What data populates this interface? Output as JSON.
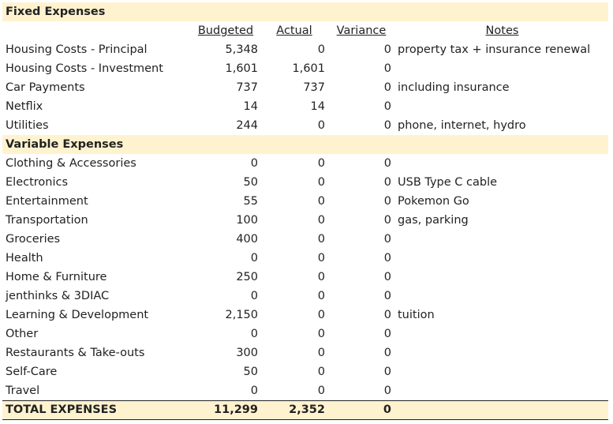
{
  "fixed": {
    "title": "Fixed Expenses",
    "headers": {
      "budgeted": "Budgeted",
      "actual": "Actual",
      "variance": "Variance",
      "notes": "Notes"
    },
    "rows": [
      {
        "label": "Housing Costs - Principal",
        "budgeted": "5,348",
        "actual": "0",
        "variance": "0",
        "note": "property tax + insurance renewal"
      },
      {
        "label": "Housing Costs - Investment",
        "budgeted": "1,601",
        "actual": "1,601",
        "variance": "0",
        "note": ""
      },
      {
        "label": "Car Payments",
        "budgeted": "737",
        "actual": "737",
        "variance": "0",
        "note": "including insurance"
      },
      {
        "label": "Netflix",
        "budgeted": "14",
        "actual": "14",
        "variance": "0",
        "note": ""
      },
      {
        "label": "Utilities",
        "budgeted": "244",
        "actual": "0",
        "variance": "0",
        "note": "phone, internet, hydro"
      }
    ]
  },
  "variable": {
    "title": "Variable Expenses",
    "rows": [
      {
        "label": "Clothing & Accessories",
        "budgeted": "0",
        "actual": "0",
        "variance": "0",
        "note": ""
      },
      {
        "label": "Electronics",
        "budgeted": "50",
        "actual": "0",
        "variance": "0",
        "note": "USB Type C cable"
      },
      {
        "label": "Entertainment",
        "budgeted": "55",
        "actual": "0",
        "variance": "0",
        "note": "Pokemon Go"
      },
      {
        "label": "Transportation",
        "budgeted": "100",
        "actual": "0",
        "variance": "0",
        "note": "gas, parking"
      },
      {
        "label": "Groceries",
        "budgeted": "400",
        "actual": "0",
        "variance": "0",
        "note": ""
      },
      {
        "label": "Health",
        "budgeted": "0",
        "actual": "0",
        "variance": "0",
        "note": ""
      },
      {
        "label": "Home & Furniture",
        "budgeted": "250",
        "actual": "0",
        "variance": "0",
        "note": ""
      },
      {
        "label": "jenthinks & 3DIAC",
        "budgeted": "0",
        "actual": "0",
        "variance": "0",
        "note": ""
      },
      {
        "label": "Learning & Development",
        "budgeted": "2,150",
        "actual": "0",
        "variance": "0",
        "note": "tuition"
      },
      {
        "label": "Other",
        "budgeted": "0",
        "actual": "0",
        "variance": "0",
        "note": ""
      },
      {
        "label": "Restaurants & Take-outs",
        "budgeted": "300",
        "actual": "0",
        "variance": "0",
        "note": ""
      },
      {
        "label": "Self-Care",
        "budgeted": "50",
        "actual": "0",
        "variance": "0",
        "note": ""
      },
      {
        "label": "Travel",
        "budgeted": "0",
        "actual": "0",
        "variance": "0",
        "note": ""
      }
    ]
  },
  "total": {
    "label": "TOTAL EXPENSES",
    "budgeted": "11,299",
    "actual": "2,352",
    "variance": "0"
  },
  "colors": {
    "section_bg": "#fff3cf"
  }
}
